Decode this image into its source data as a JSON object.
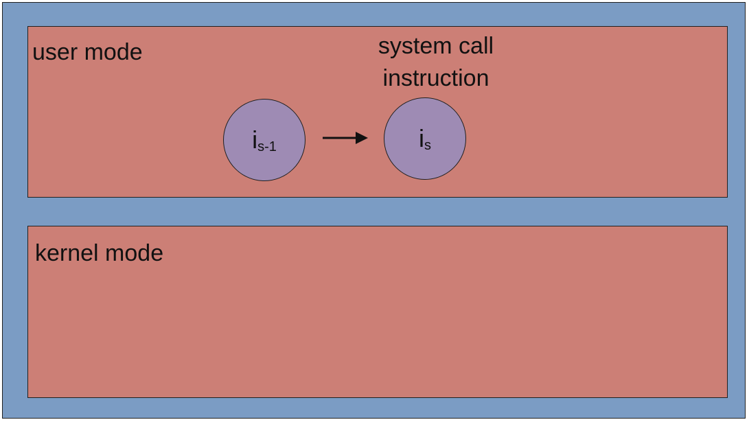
{
  "diagram": {
    "regions": [
      {
        "label": "user mode"
      },
      {
        "label": "kernel mode"
      }
    ],
    "callout": {
      "line1": "system call",
      "line2": "instruction"
    },
    "nodes": [
      {
        "main": "i",
        "sub": "s-1"
      },
      {
        "main": "i",
        "sub": "s"
      }
    ],
    "arrow_icon": "right-arrow-icon",
    "colors": {
      "outer_background": "#7b9cc4",
      "region_fill": "#cc7f76",
      "node_fill": "#9e8bb4",
      "stroke": "#1f1f1f"
    }
  }
}
